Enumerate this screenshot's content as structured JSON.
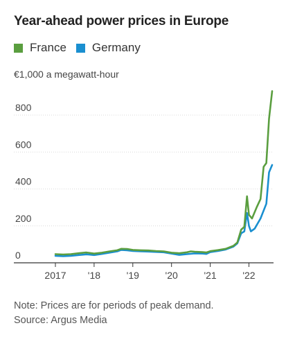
{
  "title": "Year-ahead power prices in Europe",
  "legend": [
    {
      "label": "France",
      "color": "#5a9e3f"
    },
    {
      "label": "Germany",
      "color": "#1a8fd0"
    }
  ],
  "unit_label": "€1,000 a megawatt-hour",
  "note": "Note: Prices are for periods of peak demand.",
  "source": "Source: Argus Media",
  "chart_data": {
    "type": "line",
    "title": "Year-ahead power prices in Europe",
    "ylabel": "€1,000 a megawatt-hour",
    "xlabel": "",
    "ylim": [
      0,
      1000
    ],
    "xlim": [
      2017.0,
      2022.65
    ],
    "y_ticks": [
      0,
      200,
      400,
      600,
      800
    ],
    "y_tick_labels": [
      "0",
      "200",
      "400",
      "600",
      "800"
    ],
    "x_ticks": [
      2017,
      2018,
      2019,
      2020,
      2021,
      2022
    ],
    "x_tick_labels": [
      "2017",
      "'18",
      "'19",
      "'20",
      "'21",
      "'22"
    ],
    "grid": true,
    "legend_position": "top-left",
    "series": [
      {
        "name": "France",
        "color": "#5a9e3f",
        "points": [
          [
            2017.0,
            47
          ],
          [
            2017.2,
            45
          ],
          [
            2017.4,
            47
          ],
          [
            2017.6,
            52
          ],
          [
            2017.8,
            56
          ],
          [
            2018.0,
            50
          ],
          [
            2018.2,
            55
          ],
          [
            2018.4,
            62
          ],
          [
            2018.6,
            68
          ],
          [
            2018.7,
            76
          ],
          [
            2018.85,
            75
          ],
          [
            2019.0,
            70
          ],
          [
            2019.2,
            68
          ],
          [
            2019.4,
            67
          ],
          [
            2019.6,
            64
          ],
          [
            2019.8,
            62
          ],
          [
            2020.0,
            55
          ],
          [
            2020.2,
            52
          ],
          [
            2020.4,
            57
          ],
          [
            2020.5,
            62
          ],
          [
            2020.6,
            60
          ],
          [
            2020.8,
            58
          ],
          [
            2020.9,
            56
          ],
          [
            2021.0,
            63
          ],
          [
            2021.2,
            69
          ],
          [
            2021.4,
            76
          ],
          [
            2021.6,
            92
          ],
          [
            2021.7,
            110
          ],
          [
            2021.8,
            180
          ],
          [
            2021.88,
            195
          ],
          [
            2021.95,
            360
          ],
          [
            2022.0,
            260
          ],
          [
            2022.08,
            240
          ],
          [
            2022.2,
            300
          ],
          [
            2022.3,
            345
          ],
          [
            2022.38,
            520
          ],
          [
            2022.45,
            540
          ],
          [
            2022.52,
            780
          ],
          [
            2022.6,
            930
          ]
        ]
      },
      {
        "name": "Germany",
        "color": "#1a8fd0",
        "points": [
          [
            2017.0,
            38
          ],
          [
            2017.2,
            36
          ],
          [
            2017.4,
            38
          ],
          [
            2017.6,
            42
          ],
          [
            2017.8,
            46
          ],
          [
            2018.0,
            42
          ],
          [
            2018.2,
            48
          ],
          [
            2018.4,
            55
          ],
          [
            2018.6,
            62
          ],
          [
            2018.7,
            70
          ],
          [
            2018.85,
            68
          ],
          [
            2019.0,
            64
          ],
          [
            2019.2,
            62
          ],
          [
            2019.4,
            61
          ],
          [
            2019.6,
            59
          ],
          [
            2019.8,
            57
          ],
          [
            2020.0,
            50
          ],
          [
            2020.2,
            43
          ],
          [
            2020.4,
            47
          ],
          [
            2020.6,
            51
          ],
          [
            2020.8,
            50
          ],
          [
            2020.9,
            48
          ],
          [
            2021.0,
            58
          ],
          [
            2021.2,
            64
          ],
          [
            2021.4,
            72
          ],
          [
            2021.6,
            88
          ],
          [
            2021.7,
            105
          ],
          [
            2021.8,
            160
          ],
          [
            2021.88,
            170
          ],
          [
            2021.95,
            270
          ],
          [
            2022.0,
            200
          ],
          [
            2022.05,
            170
          ],
          [
            2022.15,
            185
          ],
          [
            2022.3,
            240
          ],
          [
            2022.45,
            320
          ],
          [
            2022.52,
            490
          ],
          [
            2022.6,
            530
          ]
        ]
      }
    ]
  }
}
